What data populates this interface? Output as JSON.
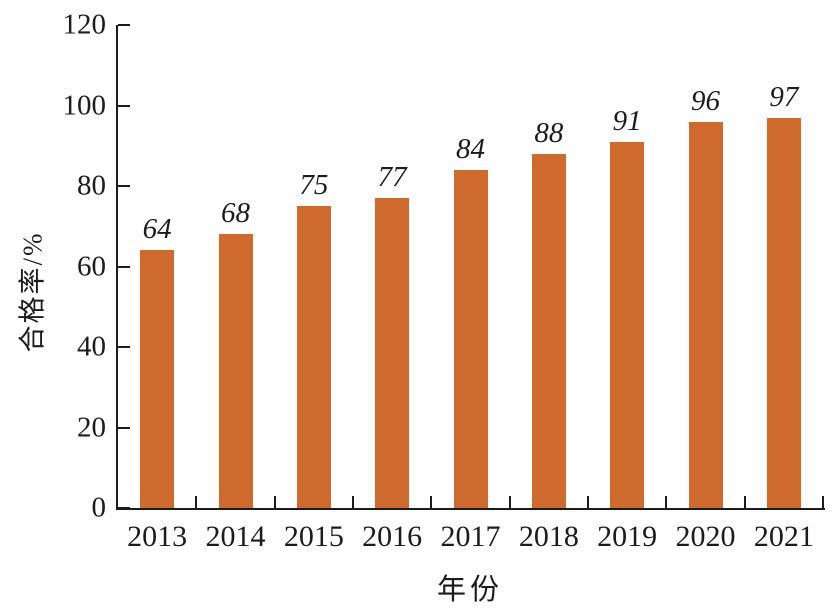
{
  "chart_data": {
    "type": "bar",
    "categories": [
      "2013",
      "2014",
      "2015",
      "2016",
      "2017",
      "2018",
      "2019",
      "2020",
      "2021"
    ],
    "values": [
      64,
      68,
      75,
      77,
      84,
      88,
      91,
      96,
      97
    ],
    "value_labels": [
      "64",
      "68",
      "75",
      "77",
      "84",
      "88",
      "91",
      "96",
      "97"
    ],
    "xlabel": "年份",
    "ylabel": "合格率/%",
    "ylim": [
      0,
      120
    ],
    "yticks": [
      0,
      20,
      40,
      60,
      80,
      100,
      120
    ],
    "grid": false,
    "legend_position": "none",
    "bar_color": "#ce6a2e",
    "axis_color": "#1c1c1c",
    "text_color": "#1c1c1c",
    "background_color": "#fefefe"
  }
}
